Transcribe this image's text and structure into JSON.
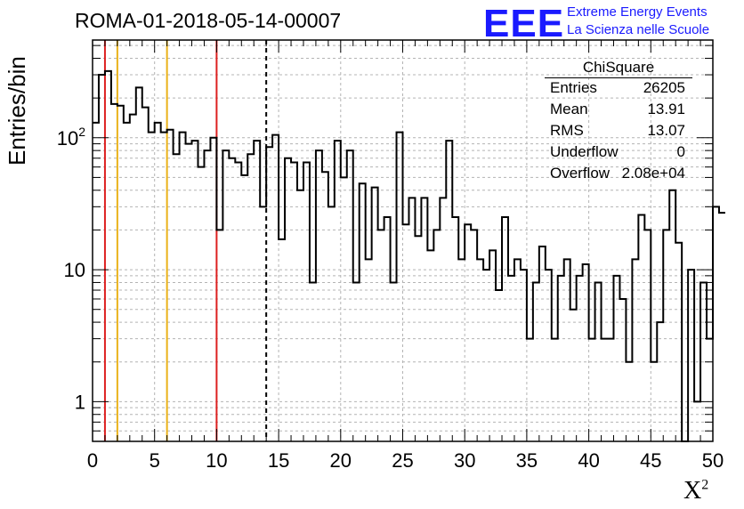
{
  "title": "ROMA-01-2018-05-14-00007",
  "logo": {
    "mark": "EEE",
    "line1": "Extreme Energy Events",
    "line2": "La Scienza nelle Scuole"
  },
  "stats": {
    "title": "ChiSquare",
    "rows": [
      {
        "key": "Entries",
        "value": "26205"
      },
      {
        "key": "Mean",
        "value": "13.91"
      },
      {
        "key": "RMS",
        "value": "13.07"
      },
      {
        "key": "Underflow",
        "value": "0"
      },
      {
        "key": "Overflow",
        "value": "2.08e+04"
      }
    ]
  },
  "chart_data": {
    "type": "histogram",
    "title": "ROMA-01-2018-05-14-00007",
    "xlabel": "X",
    "xlabel_superscript": "2",
    "ylabel": "Entries/bin",
    "xlim": [
      0,
      50
    ],
    "ylim": [
      0.5,
      550
    ],
    "yscale": "log",
    "grid": true,
    "bin_width": 0.5,
    "x_ticks": [
      "0",
      "5",
      "10",
      "15",
      "20",
      "25",
      "30",
      "35",
      "40",
      "45",
      "50"
    ],
    "y_ticks": [
      {
        "value": 1,
        "label": "1"
      },
      {
        "value": 10,
        "label": "10"
      },
      {
        "value": 100,
        "label": "10",
        "sup": "2"
      }
    ],
    "counts": [
      130,
      300,
      320,
      180,
      175,
      130,
      150,
      240,
      170,
      110,
      130,
      110,
      115,
      75,
      110,
      90,
      95,
      60,
      80,
      100,
      20,
      80,
      70,
      65,
      52,
      75,
      95,
      30,
      85,
      105,
      17,
      70,
      65,
      40,
      65,
      8,
      80,
      55,
      30,
      95,
      50,
      80,
      8,
      45,
      12,
      42,
      20,
      25,
      8,
      110,
      22,
      35,
      18,
      35,
      14,
      20,
      35,
      95,
      25,
      12,
      22,
      20,
      12,
      10,
      14,
      7,
      25,
      9,
      12,
      10,
      3,
      8,
      15,
      10,
      3,
      9,
      12,
      5,
      9,
      11,
      3,
      8,
      3,
      3,
      9,
      6,
      2,
      12,
      26,
      20,
      2,
      4,
      20,
      40,
      16,
      0.5,
      10,
      1,
      8,
      3,
      30,
      27
    ]
  },
  "reference_lines": [
    {
      "x": 1,
      "color": "#dd2020",
      "style": "solid"
    },
    {
      "x": 2,
      "color": "#eab21a",
      "style": "solid"
    },
    {
      "x": 6,
      "color": "#eab21a",
      "style": "solid"
    },
    {
      "x": 10,
      "color": "#dd2020",
      "style": "solid"
    },
    {
      "x": 14,
      "color": "#000000",
      "style": "dashed"
    }
  ]
}
